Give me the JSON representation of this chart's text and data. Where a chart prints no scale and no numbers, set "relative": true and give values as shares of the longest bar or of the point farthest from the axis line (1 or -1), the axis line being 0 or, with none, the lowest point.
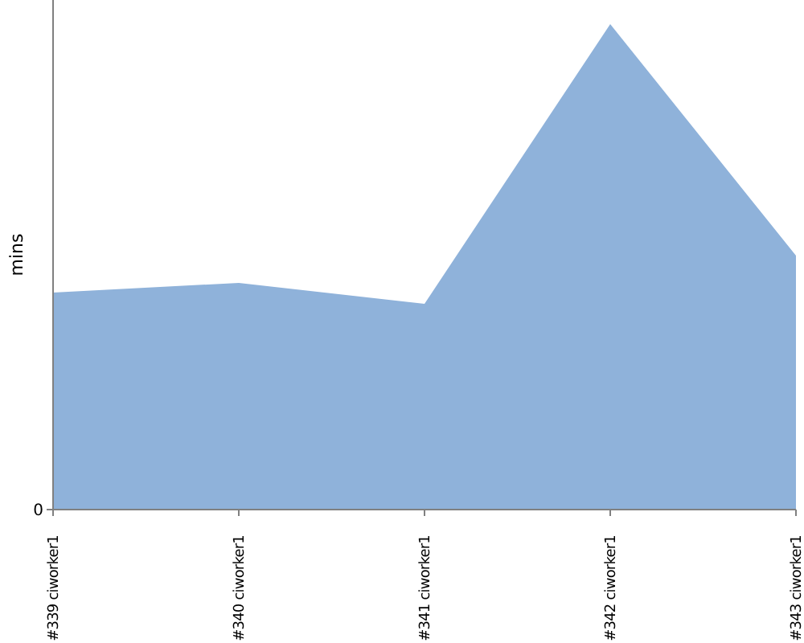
{
  "chart_data": {
    "type": "area",
    "ylabel": "mins",
    "relative": true,
    "annotations": [
      "0"
    ],
    "categories": [
      "#339 ciworker1",
      "#340 ciworker1",
      "#341 ciworker1",
      "#342 ciworker1",
      "#343 ciworker1"
    ],
    "series": [
      {
        "color": "#8fb2da",
        "values": [
          0.447,
          0.467,
          0.424,
          1,
          0.523
        ]
      }
    ]
  }
}
